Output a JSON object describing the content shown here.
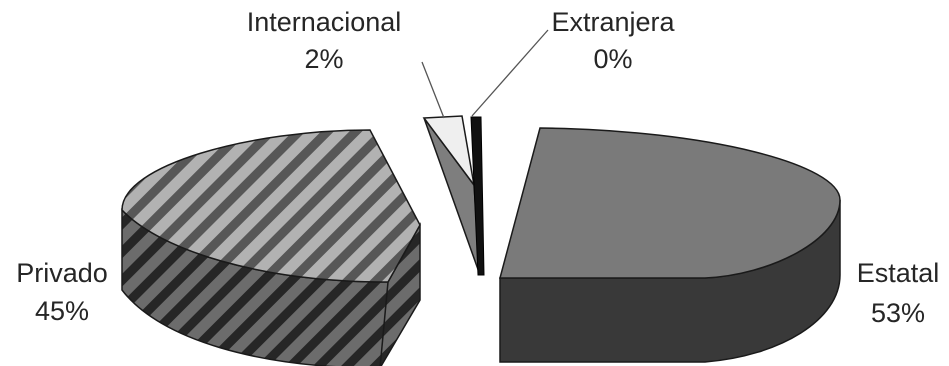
{
  "chart_data": {
    "type": "pie",
    "style": "3d-exploded",
    "slices": [
      {
        "name": "Estatal",
        "value": 53,
        "label": "53%",
        "fill": "#7a7a7a",
        "pattern": "solid"
      },
      {
        "name": "Privado",
        "value": 45,
        "label": "45%",
        "fill": "#8c8c8c",
        "pattern": "diagonal-stripes"
      },
      {
        "name": "Internacional",
        "value": 2,
        "label": "2%",
        "fill": "#efefef",
        "pattern": "solid"
      },
      {
        "name": "Extranjera",
        "value": 0,
        "label": "0%",
        "fill": "#111111",
        "pattern": "solid"
      }
    ],
    "legend": "none",
    "labels_position": "outside"
  }
}
